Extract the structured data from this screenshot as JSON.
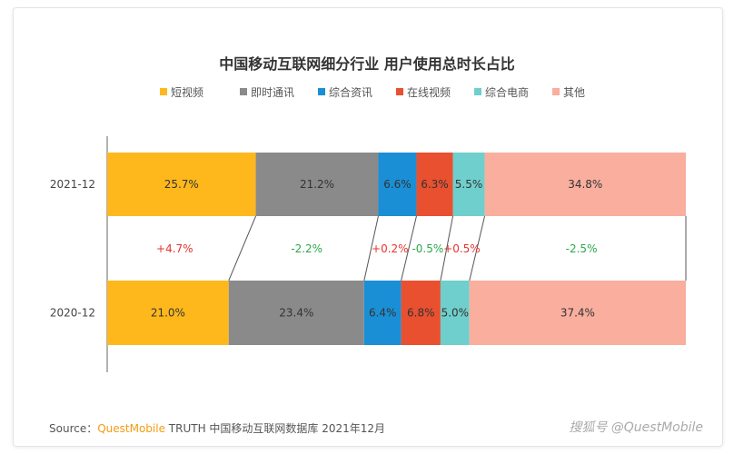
{
  "chart_data": {
    "type": "bar",
    "orientation": "horizontal-stacked-100",
    "title": "中国移动互联网细分行业 用户使用总时长占比",
    "legend_position": "top",
    "categories": [
      "2021-12",
      "2020-12"
    ],
    "series": [
      {
        "name": "短视频",
        "color": "#ffb81c",
        "values": [
          25.7,
          21.0
        ],
        "labels": [
          "25.7%",
          "21.0%"
        ],
        "change": "+4.7%"
      },
      {
        "name": "即时通讯",
        "color": "#8a8a8a",
        "values": [
          21.2,
          23.4
        ],
        "labels": [
          "21.2%",
          "23.4%"
        ],
        "change": "-2.2%"
      },
      {
        "name": "综合资讯",
        "color": "#1a8fd6",
        "values": [
          6.6,
          6.4
        ],
        "labels": [
          "6.6%",
          "6.4%"
        ],
        "change": "+0.2%"
      },
      {
        "name": "在线视频",
        "color": "#e8502f",
        "values": [
          6.3,
          6.8
        ],
        "labels": [
          "6.3%",
          "6.8%"
        ],
        "change": "-0.5%"
      },
      {
        "name": "综合电商",
        "color": "#6fcfcc",
        "values": [
          5.5,
          5.0
        ],
        "labels": [
          "5.5%",
          "5.0%"
        ],
        "change": "+0.5%"
      },
      {
        "name": "其他",
        "color": "#f9ae9e",
        "values": [
          34.8,
          37.4
        ],
        "labels": [
          "34.8%",
          "37.4%"
        ],
        "change": "-2.5%"
      }
    ],
    "change_colors": {
      "positive": "#e8332f",
      "negative": "#2aa84a"
    },
    "grid": false
  },
  "footer": {
    "source_prefix": "Source：",
    "source_brand": "QuestMobile",
    "source_rest": " TRUTH 中国移动互联网数据库 2021年12月",
    "watermark": "搜狐号 @QuestMobile"
  }
}
